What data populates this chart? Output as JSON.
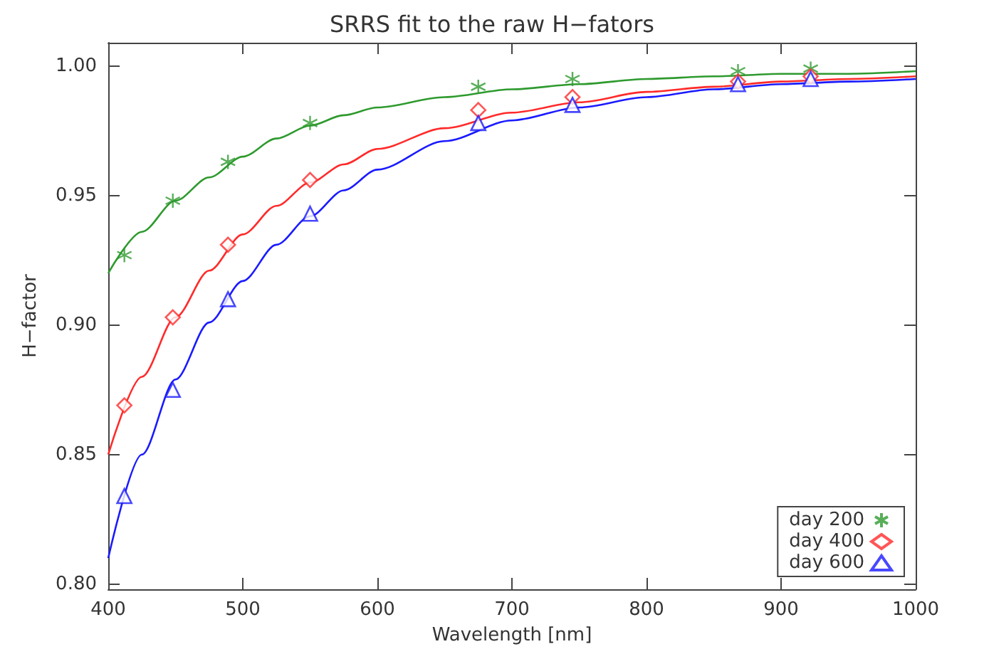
{
  "chart_data": {
    "type": "scatter",
    "title": "SRRS fit to the raw H−fators",
    "xlabel": "Wavelength [nm]",
    "ylabel": "H−factor",
    "xlim": [
      400,
      1000
    ],
    "xticks": [
      400,
      500,
      600,
      700,
      800,
      900,
      1000
    ],
    "ylim": [
      0.798,
      1.009
    ],
    "yticks": [
      {
        "value": 0.8,
        "label": "0.80"
      },
      0.85,
      {
        "value": 0.9,
        "label": "0.90"
      },
      0.95,
      {
        "value": 1,
        "label": "1.00"
      }
    ],
    "grid": false,
    "legend": "bottom right",
    "series": [
      {
        "name": "day 200",
        "color": "#2e9a2e",
        "marker": "cross",
        "x": [
          412,
          448,
          489,
          550,
          675,
          745,
          868,
          922
        ],
        "values": [
          0.927,
          0.948,
          0.963,
          0.978,
          0.992,
          0.995,
          0.998,
          0.999
        ]
      },
      {
        "name": "day 400",
        "color": "#ff2a2a",
        "marker": "diamond",
        "x": [
          412,
          448,
          489,
          550,
          675,
          745,
          868,
          922
        ],
        "values": [
          0.869,
          0.903,
          0.931,
          0.956,
          0.983,
          0.988,
          0.994,
          0.996
        ]
      },
      {
        "name": "day 600",
        "color": "#1a1aff",
        "marker": "triangle",
        "x": [
          412,
          448,
          489,
          550,
          675,
          745,
          868,
          922
        ],
        "values": [
          0.834,
          0.875,
          0.91,
          0.943,
          0.978,
          0.985,
          0.993,
          0.995
        ]
      },
      {
        "type": "line",
        "color": "#2e9a2e",
        "marker": "none",
        "x": [
          400,
          425,
          450,
          475,
          500,
          525,
          550,
          575,
          600,
          650,
          700,
          750,
          800,
          850,
          900,
          950,
          1000
        ],
        "values": [
          0.92,
          0.936,
          0.948,
          0.957,
          0.965,
          0.972,
          0.977,
          0.981,
          0.984,
          0.988,
          0.991,
          0.993,
          0.995,
          0.996,
          0.997,
          0.997,
          0.998
        ]
      },
      {
        "type": "line",
        "color": "#ff2a2a",
        "marker": "none",
        "x": [
          400,
          425,
          450,
          475,
          500,
          525,
          550,
          575,
          600,
          650,
          700,
          750,
          800,
          850,
          900,
          950,
          1000
        ],
        "values": [
          0.85,
          0.88,
          0.903,
          0.921,
          0.935,
          0.946,
          0.955,
          0.962,
          0.968,
          0.976,
          0.982,
          0.986,
          0.99,
          0.992,
          0.994,
          0.995,
          0.996
        ]
      },
      {
        "type": "line",
        "color": "#1a1aff",
        "marker": "none",
        "x": [
          400,
          425,
          450,
          475,
          500,
          525,
          550,
          575,
          600,
          650,
          700,
          750,
          800,
          850,
          900,
          950,
          1000
        ],
        "values": [
          0.81,
          0.85,
          0.879,
          0.901,
          0.917,
          0.931,
          0.942,
          0.952,
          0.96,
          0.971,
          0.979,
          0.984,
          0.988,
          0.991,
          0.993,
          0.994,
          0.995
        ]
      }
    ]
  }
}
